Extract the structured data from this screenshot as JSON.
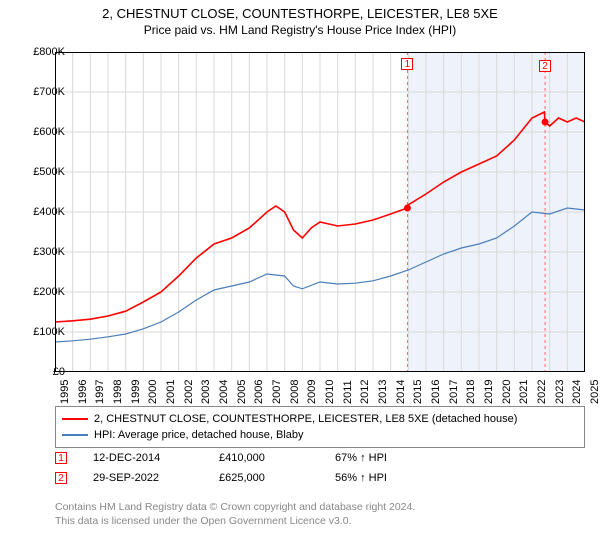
{
  "title_line1": "2, CHESTNUT CLOSE, COUNTESTHORPE, LEICESTER, LE8 5XE",
  "title_line2": "Price paid vs. HM Land Registry's House Price Index (HPI)",
  "chart": {
    "type": "line",
    "background_color": "#ffffff",
    "grid_color": "#d9d9d9",
    "shade_color": "#eef3fb",
    "x_years": [
      1995,
      1996,
      1997,
      1998,
      1999,
      2000,
      2001,
      2002,
      2003,
      2004,
      2005,
      2006,
      2007,
      2008,
      2009,
      2010,
      2011,
      2012,
      2013,
      2014,
      2015,
      2016,
      2017,
      2018,
      2019,
      2020,
      2021,
      2022,
      2023,
      2024,
      2025
    ],
    "ylim": [
      0,
      800000
    ],
    "ytick_step": 100000,
    "ylabels": [
      "£0",
      "£100K",
      "£200K",
      "£300K",
      "£400K",
      "£500K",
      "£600K",
      "£700K",
      "£800K"
    ],
    "shade_start_year": 2014.95,
    "shade_end_year": 2025,
    "series": [
      {
        "name": "property",
        "label": "2, CHESTNUT CLOSE, COUNTESTHORPE, LEICESTER, LE8 5XE (detached house)",
        "color": "#ff0000",
        "width": 1.6,
        "data": [
          [
            1995,
            125000
          ],
          [
            1996,
            128000
          ],
          [
            1997,
            132000
          ],
          [
            1998,
            140000
          ],
          [
            1999,
            152000
          ],
          [
            2000,
            175000
          ],
          [
            2001,
            200000
          ],
          [
            2002,
            240000
          ],
          [
            2003,
            285000
          ],
          [
            2004,
            320000
          ],
          [
            2005,
            335000
          ],
          [
            2006,
            360000
          ],
          [
            2007,
            400000
          ],
          [
            2007.5,
            415000
          ],
          [
            2008,
            400000
          ],
          [
            2008.5,
            355000
          ],
          [
            2009,
            335000
          ],
          [
            2009.5,
            360000
          ],
          [
            2010,
            375000
          ],
          [
            2011,
            365000
          ],
          [
            2012,
            370000
          ],
          [
            2013,
            380000
          ],
          [
            2014,
            395000
          ],
          [
            2014.95,
            410000
          ],
          [
            2015,
            418000
          ],
          [
            2016,
            445000
          ],
          [
            2017,
            475000
          ],
          [
            2018,
            500000
          ],
          [
            2019,
            520000
          ],
          [
            2020,
            540000
          ],
          [
            2021,
            580000
          ],
          [
            2022,
            635000
          ],
          [
            2022.7,
            650000
          ],
          [
            2022.74,
            625000
          ],
          [
            2023,
            615000
          ],
          [
            2023.5,
            635000
          ],
          [
            2024,
            625000
          ],
          [
            2024.5,
            635000
          ],
          [
            2025,
            625000
          ]
        ]
      },
      {
        "name": "hpi",
        "label": "HPI: Average price, detached house, Blaby",
        "color": "#4a7ebb",
        "width": 1.2,
        "data": [
          [
            1995,
            75000
          ],
          [
            1996,
            78000
          ],
          [
            1997,
            82000
          ],
          [
            1998,
            88000
          ],
          [
            1999,
            95000
          ],
          [
            2000,
            108000
          ],
          [
            2001,
            125000
          ],
          [
            2002,
            150000
          ],
          [
            2003,
            180000
          ],
          [
            2004,
            205000
          ],
          [
            2005,
            215000
          ],
          [
            2006,
            225000
          ],
          [
            2007,
            245000
          ],
          [
            2008,
            240000
          ],
          [
            2008.5,
            215000
          ],
          [
            2009,
            208000
          ],
          [
            2010,
            225000
          ],
          [
            2011,
            220000
          ],
          [
            2012,
            222000
          ],
          [
            2013,
            228000
          ],
          [
            2014,
            240000
          ],
          [
            2015,
            255000
          ],
          [
            2016,
            275000
          ],
          [
            2017,
            295000
          ],
          [
            2018,
            310000
          ],
          [
            2019,
            320000
          ],
          [
            2020,
            335000
          ],
          [
            2021,
            365000
          ],
          [
            2022,
            400000
          ],
          [
            2023,
            395000
          ],
          [
            2024,
            410000
          ],
          [
            2025,
            405000
          ]
        ]
      }
    ],
    "markers": [
      {
        "n": "1",
        "year": 2014.95,
        "value": 410000
      },
      {
        "n": "2",
        "year": 2022.74,
        "value": 625000
      }
    ]
  },
  "legend": {
    "items": [
      {
        "color": "#ff0000",
        "text": "2, CHESTNUT CLOSE, COUNTESTHORPE, LEICESTER, LE8 5XE (detached house)"
      },
      {
        "color": "#4a7ebb",
        "text": "HPI: Average price, detached house, Blaby"
      }
    ]
  },
  "sales": [
    {
      "n": "1",
      "date": "12-DEC-2014",
      "price": "£410,000",
      "pct": "67% ↑ HPI"
    },
    {
      "n": "2",
      "date": "29-SEP-2022",
      "price": "£625,000",
      "pct": "56% ↑ HPI"
    }
  ],
  "footer_line1": "Contains HM Land Registry data © Crown copyright and database right 2024.",
  "footer_line2": "This data is licensed under the Open Government Licence v3.0."
}
